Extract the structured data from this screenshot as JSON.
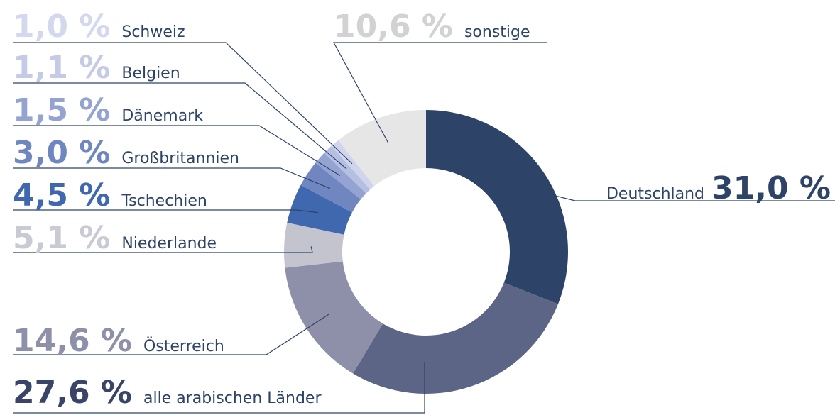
{
  "chart_data": {
    "type": "donut",
    "categories": [
      "Deutschland",
      "alle arabischen Länder",
      "Österreich",
      "Niederlande",
      "Tschechien",
      "Großbritannien",
      "Dänemark",
      "Belgien",
      "Schweiz",
      "sonstige"
    ],
    "values": [
      31.0,
      27.6,
      14.6,
      5.1,
      4.5,
      3.0,
      1.5,
      1.1,
      1.0,
      10.6
    ],
    "value_labels": [
      "31,0 %",
      "27,6 %",
      "14,6 %",
      "5,1 %",
      "4,5 %",
      "3,0 %",
      "1,5 %",
      "1,1 %",
      "1,0 %",
      "10,6 %"
    ],
    "colors": [
      "#2d4468",
      "#5c6585",
      "#8e8fa8",
      "#c4c4cf",
      "#4068ae",
      "#7086c0",
      "#95a3d2",
      "#b5bfe2",
      "#d0d5ec",
      "#e6e6e6"
    ],
    "label_colors": [
      "#2d4468",
      "#3a4468",
      "#8e8fa8",
      "#cacad4",
      "#4068ae",
      "#7086c0",
      "#95a3d2",
      "#c5cbe6",
      "#d3d8ee",
      "#d2d2d2"
    ]
  }
}
